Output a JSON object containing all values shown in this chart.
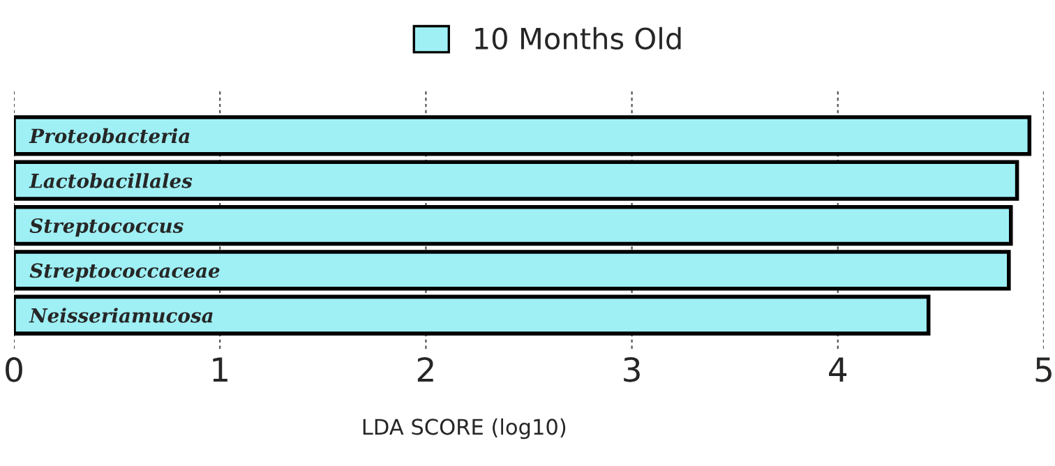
{
  "chart_data": {
    "type": "bar",
    "orientation": "horizontal",
    "xlabel": "LDA SCORE (log10)",
    "categories": [
      "Proteobacteria",
      "Lactobacillales",
      "Streptococcus",
      "Streptococcaceae",
      "Neisseriamucosa"
    ],
    "series": [
      {
        "name": "10 Months Old",
        "color": "#9ff0f5",
        "values": [
          4.93,
          4.87,
          4.84,
          4.83,
          4.44
        ]
      }
    ],
    "xlim": [
      0,
      5
    ],
    "xticks": [
      0,
      1,
      2,
      3,
      4,
      5
    ],
    "grid": "x",
    "legend": "top"
  }
}
